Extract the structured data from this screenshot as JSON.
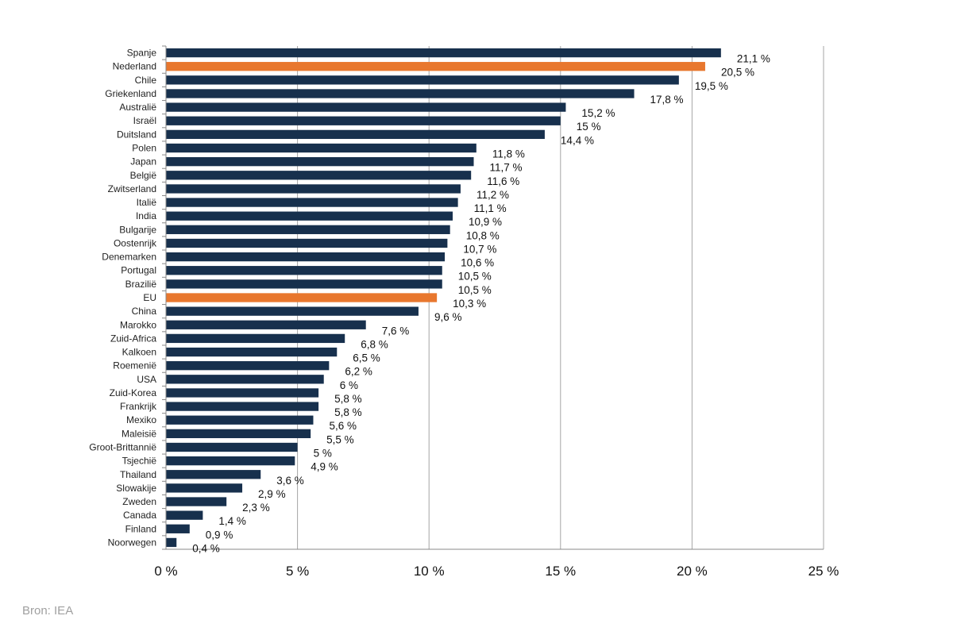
{
  "source": "Bron: IEA",
  "colors": {
    "bar": "#17304d",
    "highlight": "#e8772e",
    "grid": "#a6a6a6"
  },
  "chart_data": {
    "type": "bar",
    "orientation": "horizontal",
    "title": "",
    "xlabel": "",
    "ylabel": "",
    "xlim": [
      0,
      25
    ],
    "x_ticks": [
      "0 %",
      "5 %",
      "10 %",
      "15 %",
      "20 %",
      "25 %"
    ],
    "grid": "vertical",
    "legend": "none",
    "categories": [
      "Spanje",
      "Nederland",
      "Chile",
      "Griekenland",
      "Australië",
      "Israël",
      "Duitsland",
      "Polen",
      "Japan",
      "België",
      "Zwitserland",
      "Italië",
      "India",
      "Bulgarije",
      "Oostenrijk",
      "Denemarken",
      "Portugal",
      "Brazilië",
      "EU",
      "China",
      "Marokko",
      "Zuid-Africa",
      "Kalkoen",
      "Roemenië",
      "USA",
      "Zuid-Korea",
      "Frankrijk",
      "Mexiko",
      "Maleisië",
      "Groot-Brittannië",
      "Tsjechië",
      "Thailand",
      "Slowakije",
      "Zweden",
      "Canada",
      "Finland",
      "Noorwegen"
    ],
    "values": [
      21.1,
      20.5,
      19.5,
      17.8,
      15.2,
      15,
      14.4,
      11.8,
      11.7,
      11.6,
      11.2,
      11.1,
      10.9,
      10.8,
      10.7,
      10.6,
      10.5,
      10.5,
      10.3,
      9.6,
      7.6,
      6.8,
      6.5,
      6.2,
      6,
      5.8,
      5.8,
      5.6,
      5.5,
      5,
      4.9,
      3.6,
      2.9,
      2.3,
      1.4,
      0.9,
      0.4
    ],
    "value_labels": [
      "21,1 %",
      "20,5 %",
      "19,5 %",
      "17,8 %",
      "15,2 %",
      "15 %",
      "14,4 %",
      "11,8 %",
      "11,7 %",
      "11,6 %",
      "11,2 %",
      "11,1 %",
      "10,9 %",
      "10,8 %",
      "10,7 %",
      "10,6 %",
      "10,5 %",
      "10,5 %",
      "10,3 %",
      "9,6 %",
      "7,6 %",
      "6,8 %",
      "6,5 %",
      "6,2 %",
      "6 %",
      "5,8 %",
      "5,8 %",
      "5,6 %",
      "5,5 %",
      "5 %",
      "4,9 %",
      "3,6 %",
      "2,9 %",
      "2,3 %",
      "1,4 %",
      "0,9 %",
      "0,4 %"
    ],
    "highlighted": [
      "Nederland",
      "EU"
    ]
  }
}
